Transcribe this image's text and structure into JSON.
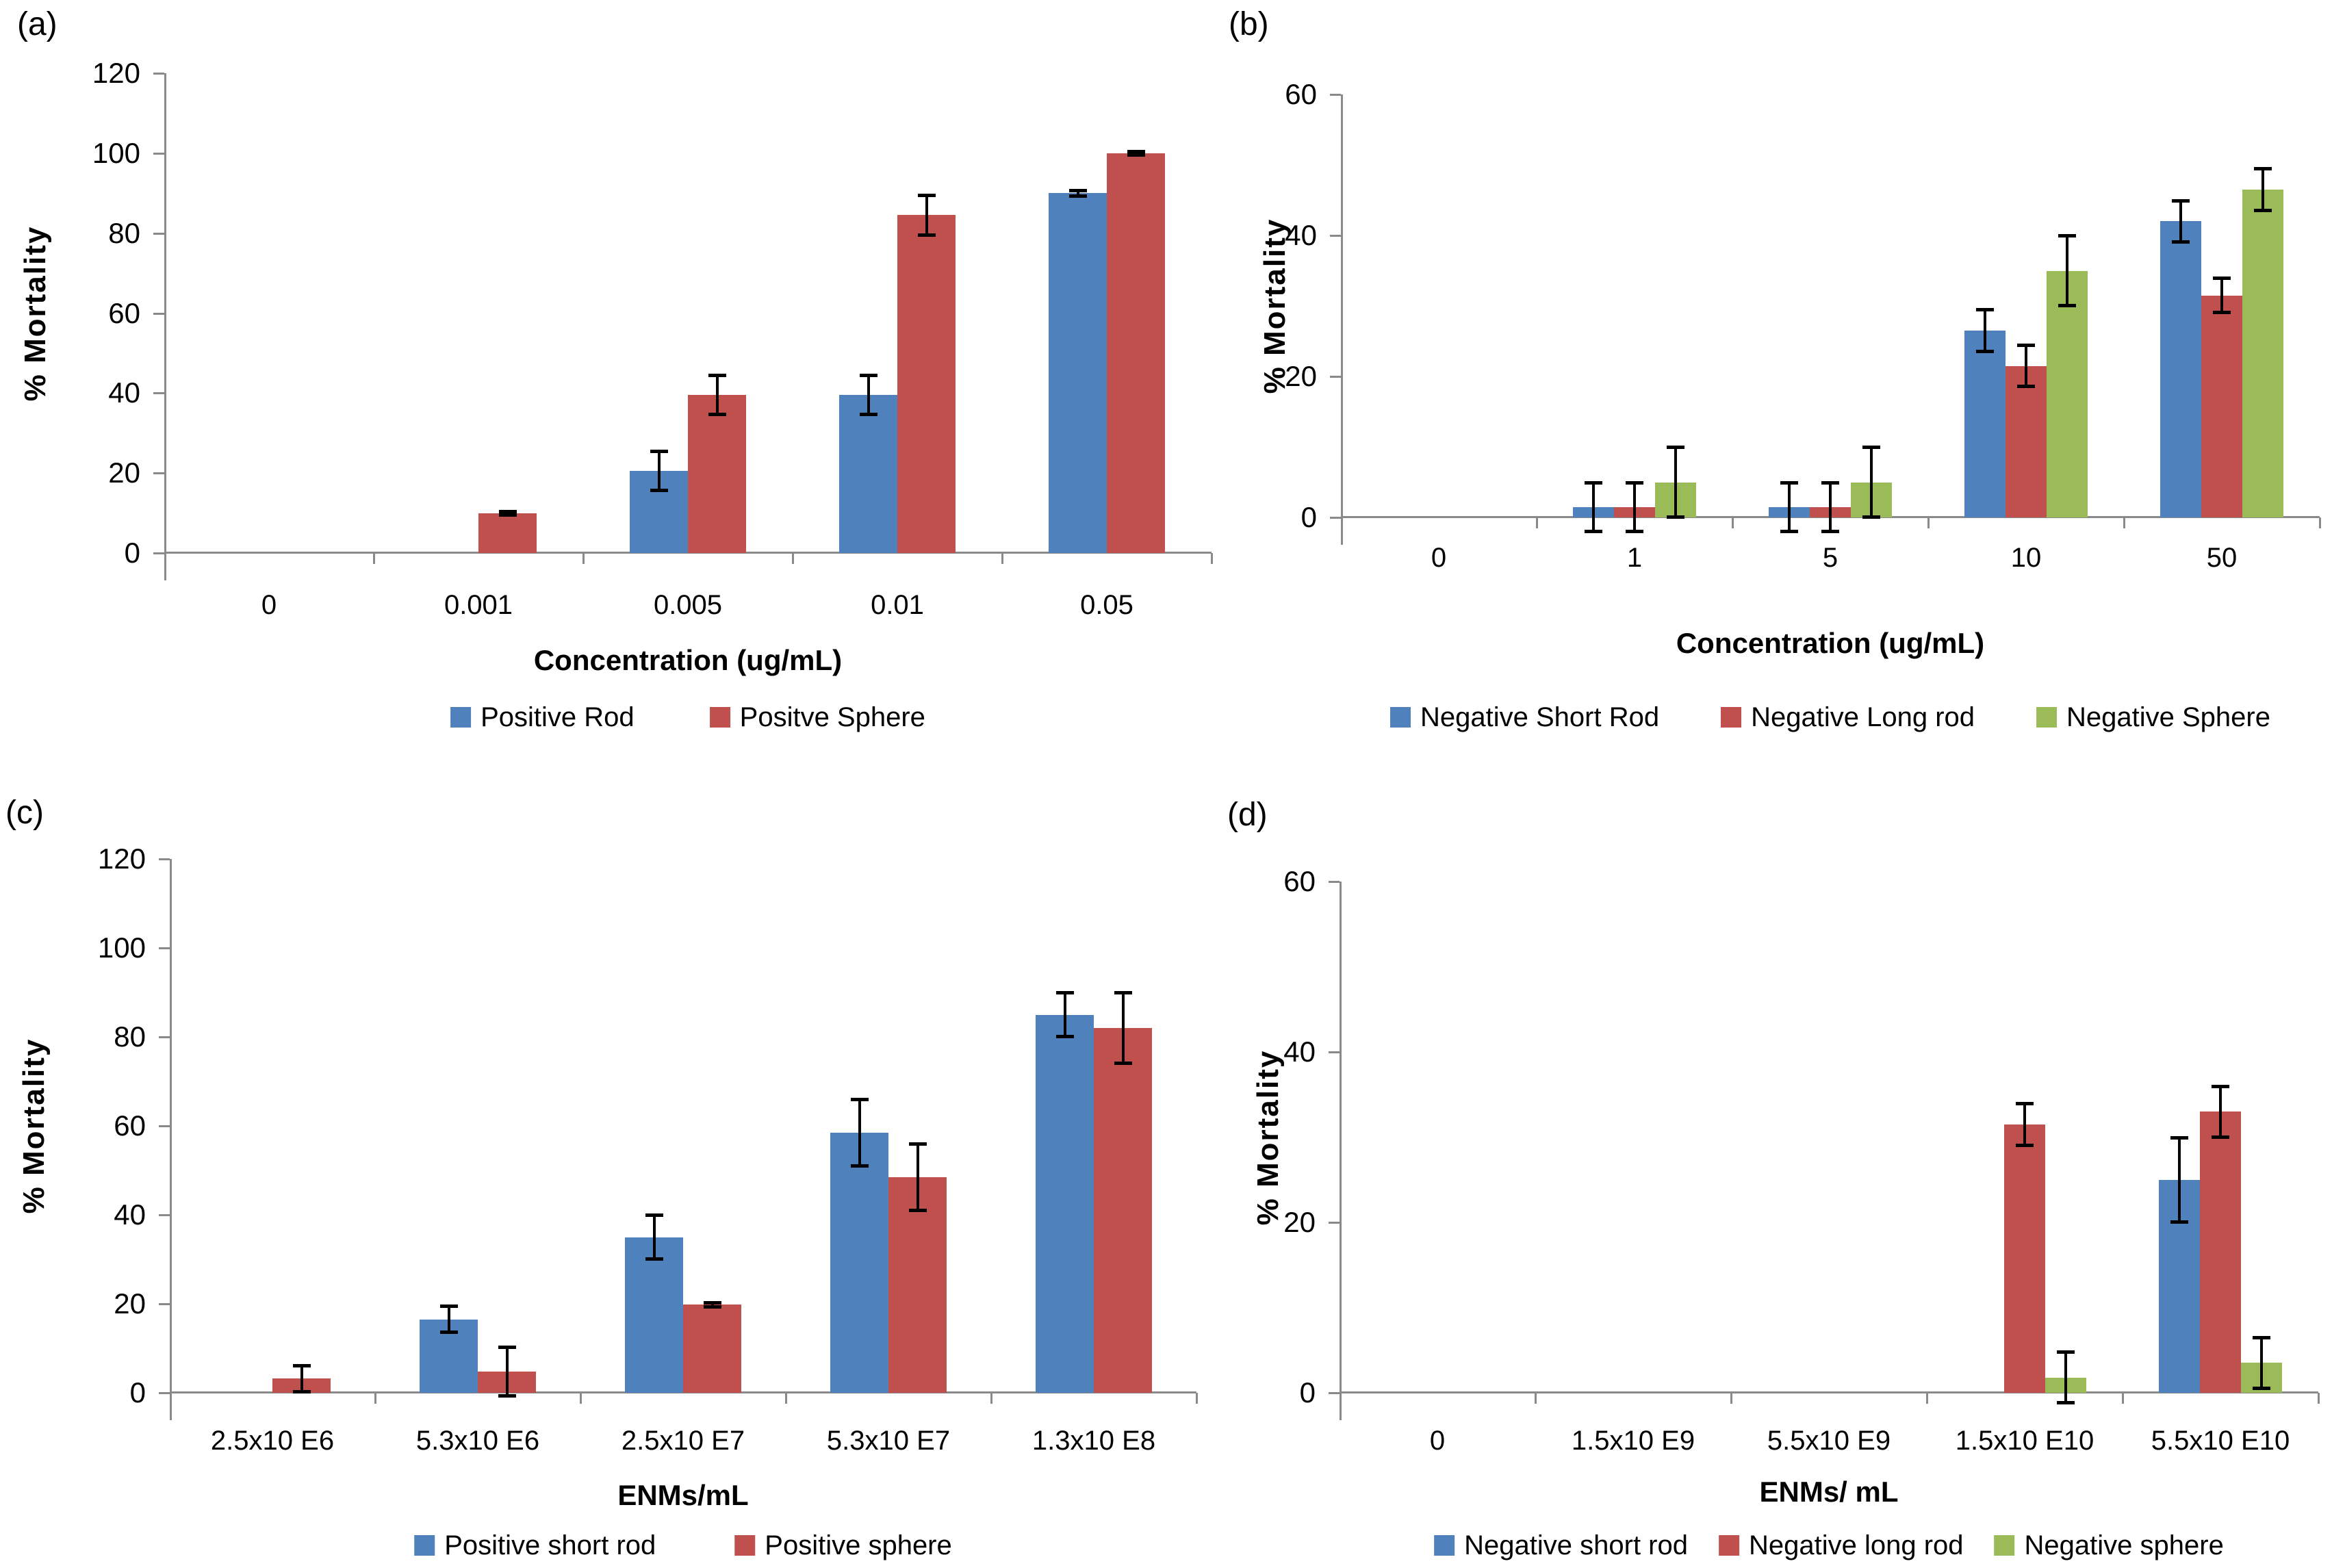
{
  "style": {
    "background": "#ffffff",
    "axis_color": "#8a8a8a",
    "error_bar_color": "#000000",
    "text_color": "#000000",
    "series_palette": {
      "blue": "#4f81bd",
      "red": "#c0504d",
      "green": "#9bbb59"
    }
  },
  "chart_data": [
    {
      "panel_label": "(a)",
      "type": "bar",
      "title": "",
      "xlabel": "Concentration (ug/mL)",
      "ylabel": "% Mortality",
      "ylim": [
        0,
        120
      ],
      "yticks": [
        0,
        20,
        40,
        60,
        80,
        100,
        120
      ],
      "categories": [
        "0",
        "0.001",
        "0.005",
        "0.01",
        "0.05"
      ],
      "series": [
        {
          "name": "Positive Rod",
          "color": "#4f81bd",
          "values": [
            0,
            0,
            20.5,
            39.5,
            90
          ],
          "errors": [
            0,
            0,
            5,
            5,
            0.8
          ]
        },
        {
          "name": "Positve Sphere",
          "color": "#c0504d",
          "values": [
            0,
            10,
            39.5,
            84.5,
            100
          ],
          "errors": [
            0,
            0.5,
            5,
            5,
            0.5
          ]
        }
      ],
      "legend_position": "bottom",
      "grid": false,
      "error_bars": true
    },
    {
      "panel_label": "(b)",
      "type": "bar",
      "title": "",
      "xlabel": "Concentration (ug/mL)",
      "ylabel": "% Mortality",
      "ylim": [
        0,
        60
      ],
      "yticks": [
        0,
        20,
        40,
        60
      ],
      "categories": [
        "0",
        "1",
        "5",
        "10",
        "50"
      ],
      "series": [
        {
          "name": "Negative Short Rod",
          "color": "#4f81bd",
          "values": [
            0,
            1.5,
            1.5,
            26.5,
            42
          ],
          "errors": [
            0,
            3.5,
            3.5,
            3,
            3
          ]
        },
        {
          "name": "Negative Long rod",
          "color": "#c0504d",
          "values": [
            0,
            1.5,
            1.5,
            21.5,
            31.5
          ],
          "errors": [
            0,
            3.5,
            3.5,
            3,
            2.5
          ]
        },
        {
          "name": "Negative Sphere",
          "color": "#9bbb59",
          "values": [
            0,
            5,
            5,
            35,
            46.5
          ],
          "errors": [
            0,
            5,
            5,
            5,
            3
          ]
        }
      ],
      "legend_position": "bottom",
      "grid": false,
      "error_bars": true
    },
    {
      "panel_label": "(c)",
      "type": "bar",
      "title": "",
      "xlabel": "ENMs/mL",
      "ylabel": "% Mortality",
      "ylim": [
        0,
        120
      ],
      "yticks": [
        0,
        20,
        40,
        60,
        80,
        100,
        120
      ],
      "categories": [
        "2.5x10 E6",
        "5.3x10 E6",
        "2.5x10 E7",
        "5.3x10 E7",
        "1.3x10 E8"
      ],
      "series": [
        {
          "name": "Positive short rod",
          "color": "#4f81bd",
          "values": [
            0,
            16.5,
            35,
            58.5,
            85
          ],
          "errors": [
            0,
            3,
            5,
            7.5,
            5
          ]
        },
        {
          "name": "Positive sphere",
          "color": "#c0504d",
          "values": [
            3.2,
            4.8,
            19.8,
            48.5,
            82
          ],
          "errors": [
            3,
            5.5,
            0.5,
            7.5,
            8
          ]
        }
      ],
      "legend_position": "bottom",
      "grid": false,
      "error_bars": true
    },
    {
      "panel_label": "(d)",
      "type": "bar",
      "title": "",
      "xlabel": "ENMs/ mL",
      "ylabel": "% Mortality",
      "ylim": [
        0,
        60
      ],
      "yticks": [
        0,
        20,
        40,
        60
      ],
      "categories": [
        "0",
        "1.5x10 E9",
        "5.5x10 E9",
        "1.5x10 E10",
        "5.5x10 E10"
      ],
      "series": [
        {
          "name": "Negative short rod",
          "color": "#4f81bd",
          "values": [
            0,
            0,
            0,
            0,
            25
          ],
          "errors": [
            0,
            0,
            0,
            0,
            5
          ]
        },
        {
          "name": "Negative long rod",
          "color": "#c0504d",
          "values": [
            0,
            0,
            0,
            31.5,
            33
          ],
          "errors": [
            0,
            0,
            0,
            2.5,
            3
          ]
        },
        {
          "name": "Negative sphere",
          "color": "#9bbb59",
          "values": [
            0,
            0,
            0,
            1.8,
            3.5
          ],
          "errors": [
            0,
            0,
            0,
            3,
            3
          ]
        }
      ],
      "legend_position": "bottom",
      "grid": false,
      "error_bars": true
    }
  ]
}
